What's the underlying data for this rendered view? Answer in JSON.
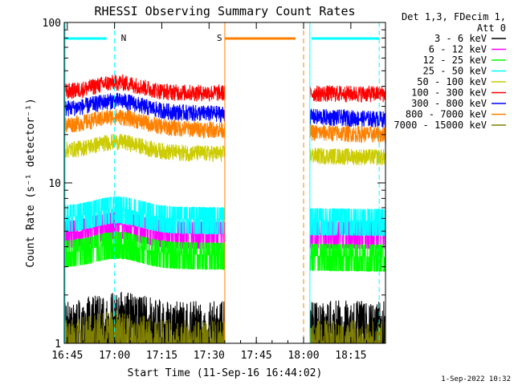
{
  "chart_data": {
    "type": "line",
    "title": "RHESSI Observing Summary Count Rates",
    "xlabel": "Start Time (11-Sep-16 16:44:02)",
    "ylabel": "Count Rate (s⁻¹ detector⁻¹)",
    "y_scale": "log",
    "ylim": [
      1,
      100
    ],
    "xlim": [
      "16:44:02",
      "18:26:00"
    ],
    "x_ticks": [
      "16:45",
      "17:00",
      "17:15",
      "17:30",
      "17:45",
      "18:00",
      "18:15"
    ],
    "y_ticks": [
      "1",
      "10",
      "100"
    ],
    "legend_title": [
      "Det 1,3, FDecim 1,",
      "Att 0"
    ],
    "legend_placement": "right",
    "timestamp": "1-Sep-2022 10:32",
    "annotations": [
      {
        "label": "N",
        "color": "#00ffff",
        "start": "16:44",
        "end": "17:00"
      },
      {
        "label": "S",
        "color": "#ff8000",
        "start": "17:35",
        "end": "18:00"
      }
    ],
    "data_gaps": [
      [
        "17:35",
        "18:02"
      ]
    ],
    "series": [
      {
        "name": "3 - 6 keV",
        "color": "#000000",
        "level": [
          1.85,
          1.85
        ]
      },
      {
        "name": "6 - 12 keV",
        "color": "#ff00ff",
        "level": [
          5.0,
          5.0
        ]
      },
      {
        "name": "12 - 25 keV",
        "color": "#00ff00",
        "level": [
          3.8,
          3.6
        ]
      },
      {
        "name": "25 - 50 keV",
        "color": "#00ffff",
        "level": [
          6.3,
          6.0
        ]
      },
      {
        "name": "50 - 100 keV",
        "color": "#cccc00",
        "level": [
          16.0,
          14.5
        ]
      },
      {
        "name": "100 - 300 keV",
        "color": "#ff0000",
        "level": [
          37.0,
          36.0
        ]
      },
      {
        "name": "300 - 800 keV",
        "color": "#0000ff",
        "level": [
          29.0,
          25.0
        ]
      },
      {
        "name": "800 - 7000 keV",
        "color": "#ff8000",
        "level": [
          23.0,
          20.0
        ]
      },
      {
        "name": "7000 - 15000 keV",
        "color": "#808000",
        "level": [
          1.4,
          1.4
        ]
      }
    ]
  }
}
